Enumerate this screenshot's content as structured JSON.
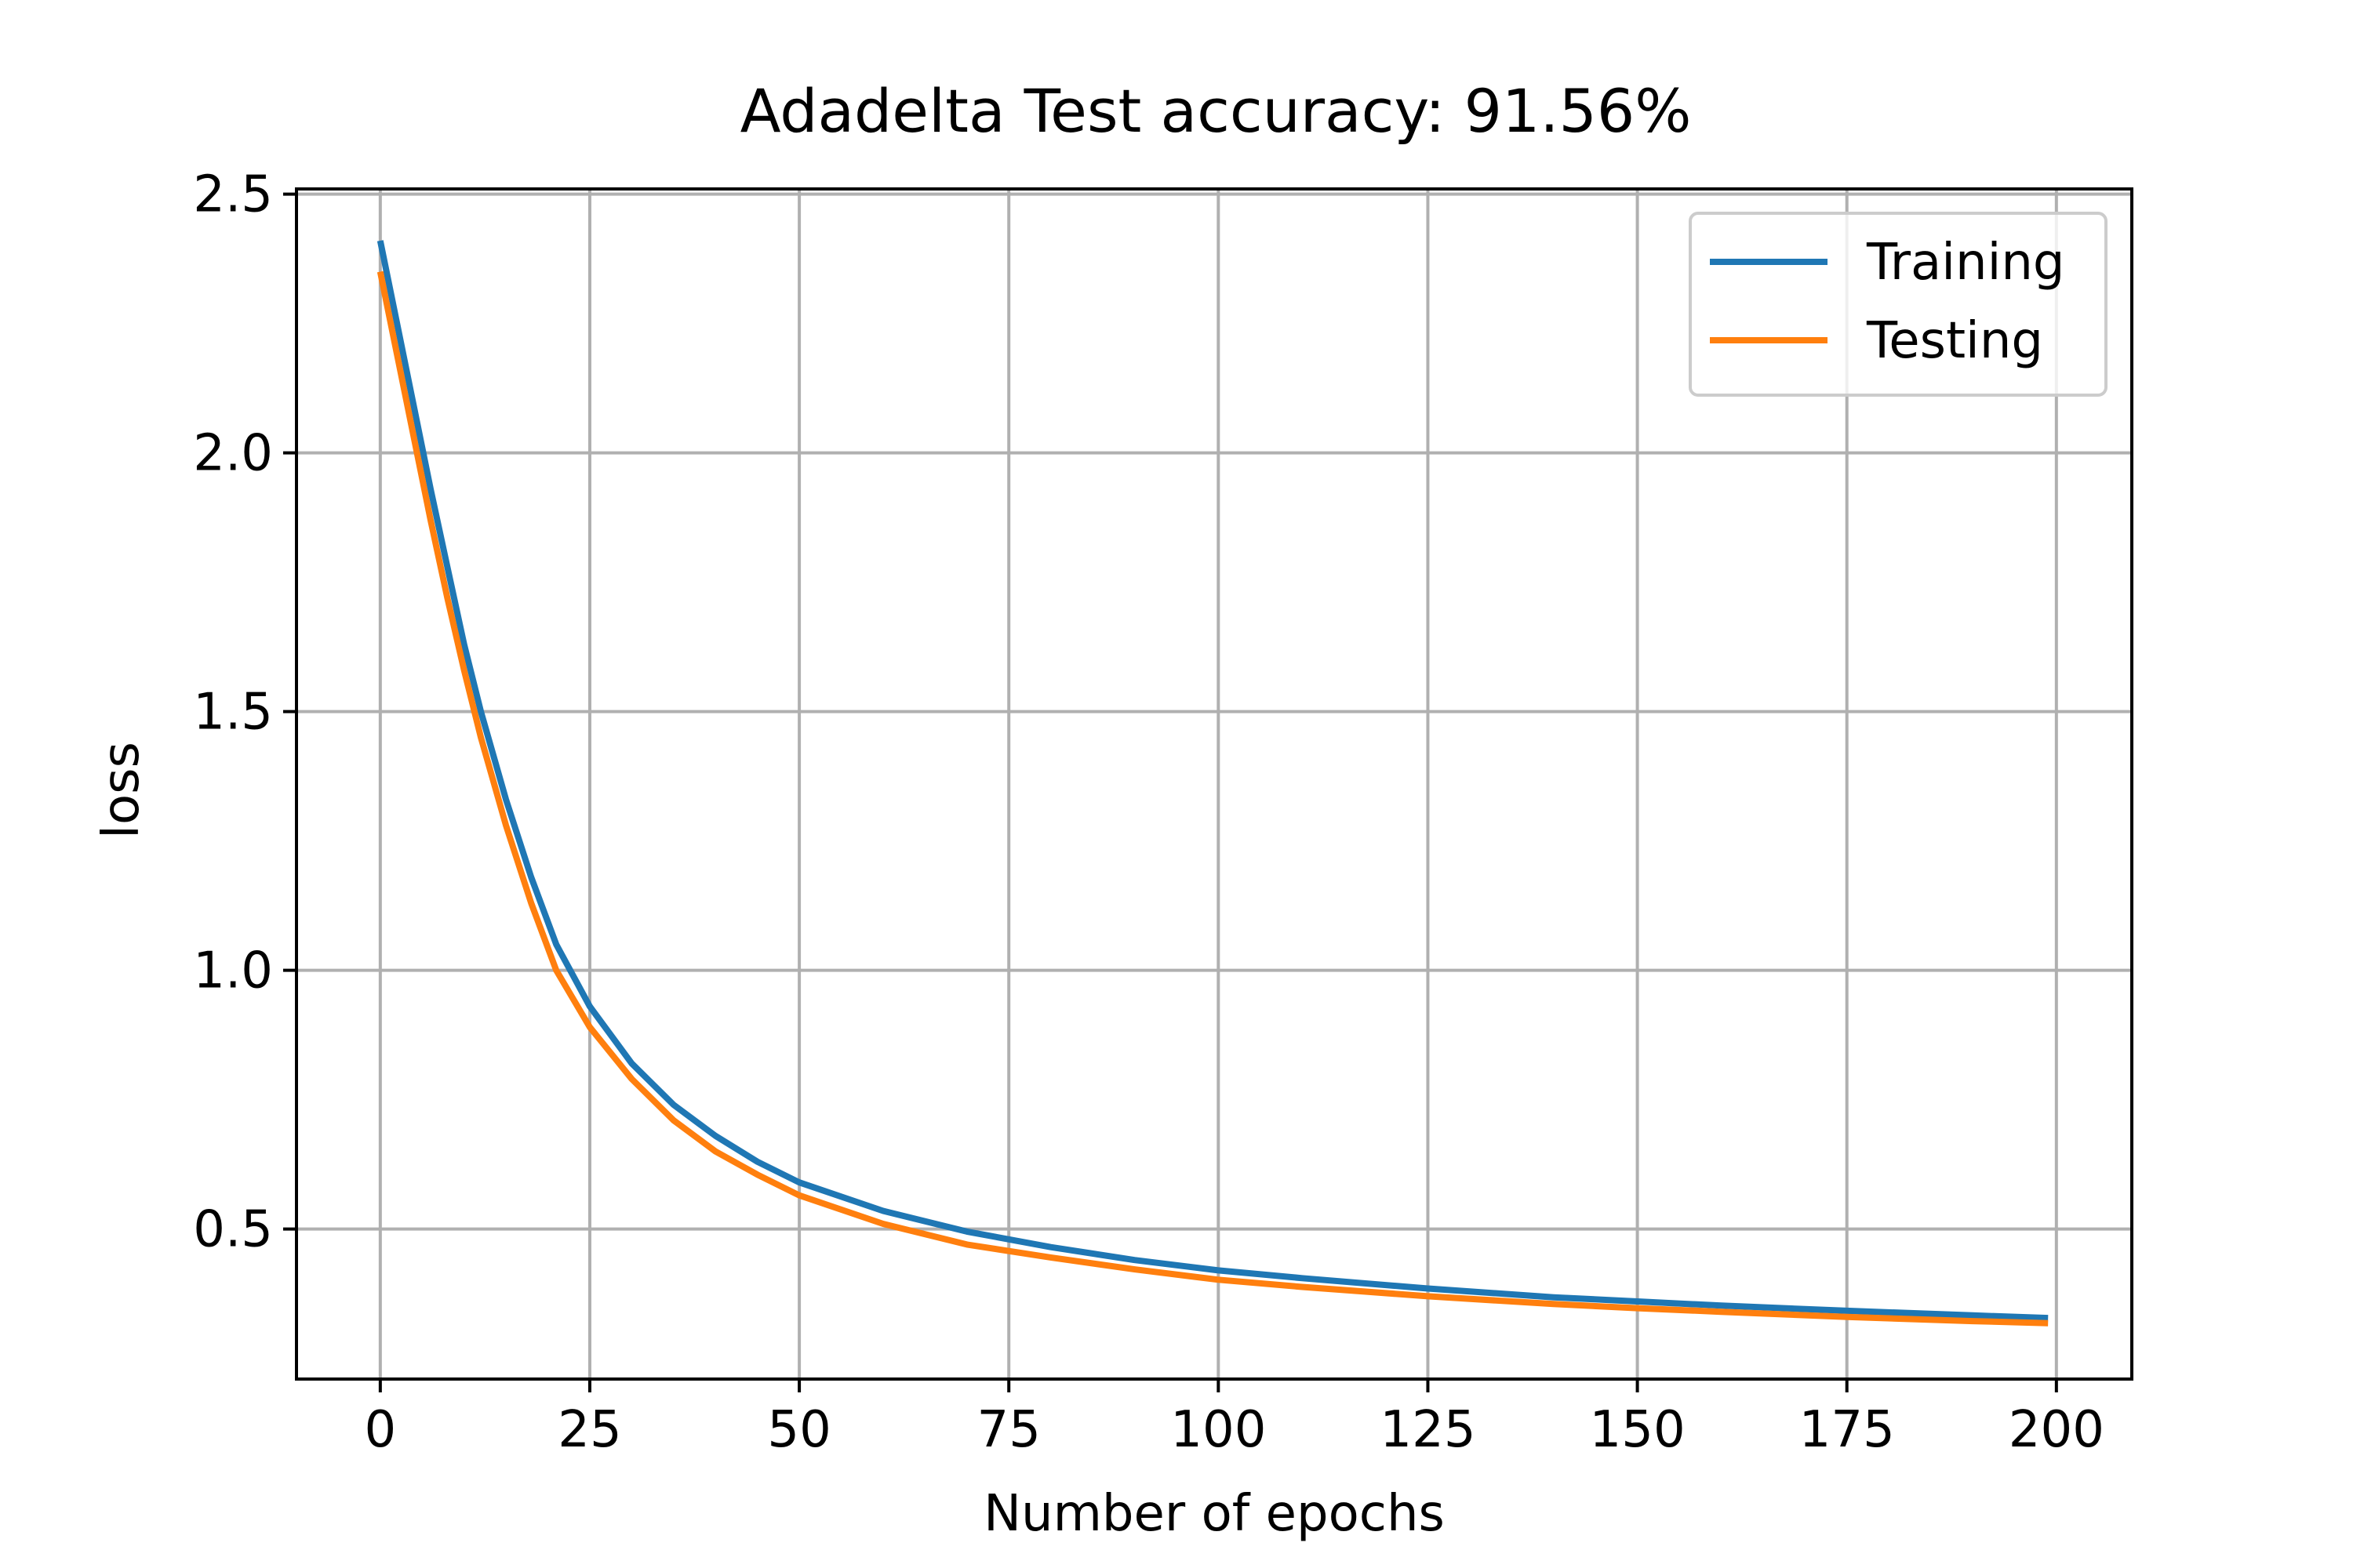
{
  "chart_data": {
    "type": "line",
    "title": "Adadelta Test accuracy: 91.56%",
    "xlabel": "Number of epochs",
    "ylabel": "loss",
    "xlim": [
      -10,
      209
    ],
    "ylim": [
      0.21,
      2.51
    ],
    "xticks": [
      0,
      25,
      50,
      75,
      100,
      125,
      150,
      175,
      200
    ],
    "yticks": [
      0.5,
      1.0,
      1.5,
      2.0,
      2.5
    ],
    "ytick_labels": [
      "0.5",
      "1.0",
      "1.5",
      "2.0",
      "2.5"
    ],
    "grid": true,
    "legend_position": "top-right",
    "x": [
      0,
      2,
      4,
      6,
      8,
      10,
      12,
      15,
      18,
      21,
      25,
      30,
      35,
      40,
      45,
      50,
      60,
      70,
      80,
      90,
      100,
      110,
      125,
      140,
      150,
      160,
      175,
      190,
      199
    ],
    "series": [
      {
        "name": "Training",
        "color": "#1f77b4",
        "values": [
          2.41,
          2.25,
          2.09,
          1.93,
          1.78,
          1.63,
          1.5,
          1.33,
          1.18,
          1.05,
          0.93,
          0.82,
          0.74,
          0.68,
          0.63,
          0.59,
          0.535,
          0.495,
          0.465,
          0.44,
          0.42,
          0.405,
          0.385,
          0.368,
          0.36,
          0.352,
          0.342,
          0.333,
          0.328
        ]
      },
      {
        "name": "Testing",
        "color": "#ff7f0e",
        "values": [
          2.35,
          2.19,
          2.03,
          1.87,
          1.72,
          1.58,
          1.45,
          1.28,
          1.13,
          1.0,
          0.89,
          0.79,
          0.71,
          0.65,
          0.605,
          0.565,
          0.51,
          0.47,
          0.445,
          0.422,
          0.402,
          0.388,
          0.37,
          0.355,
          0.347,
          0.34,
          0.33,
          0.322,
          0.318
        ]
      }
    ]
  }
}
